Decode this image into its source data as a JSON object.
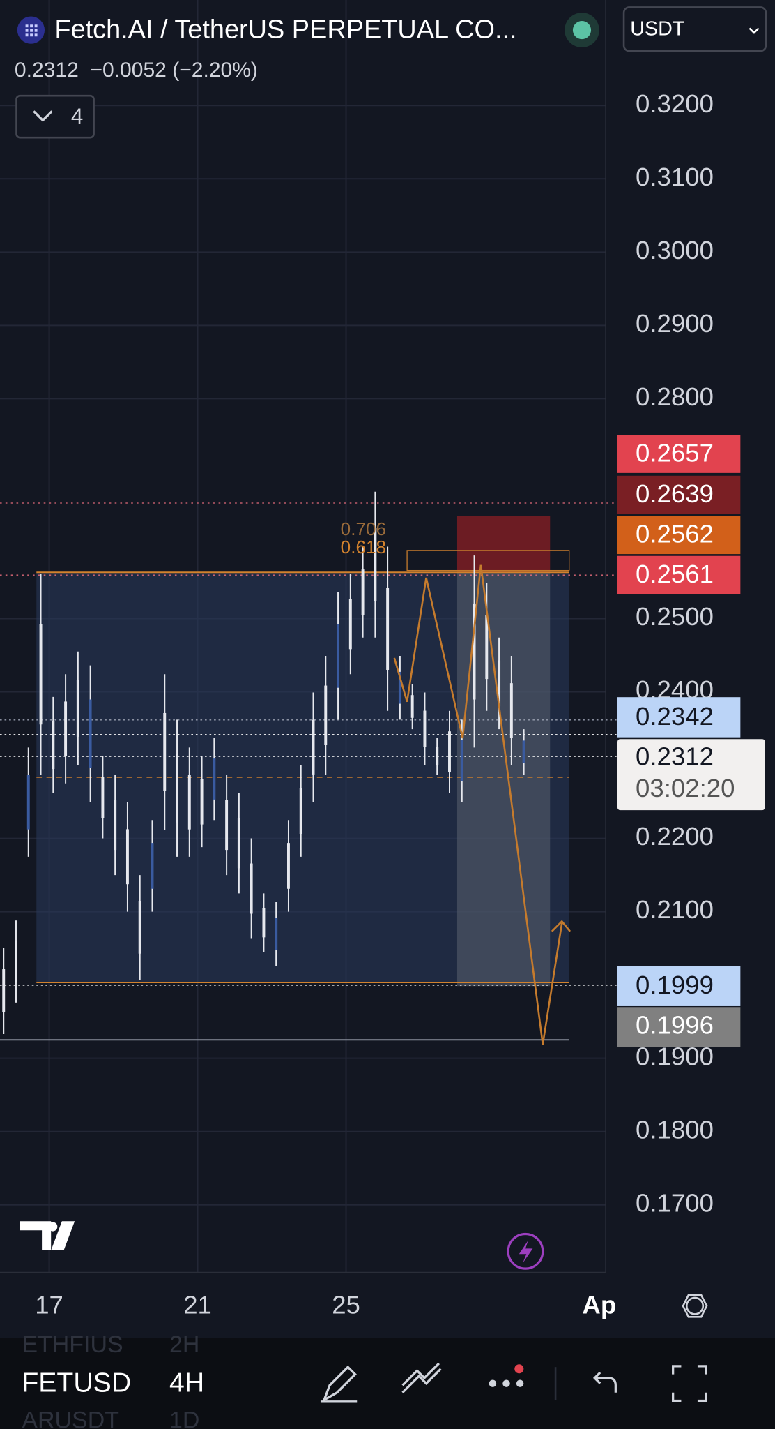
{
  "header": {
    "title": "Fetch.AI / TetherUS PERPETUAL CO...",
    "quote": "0.2312  −0.0052 (−2.20%)",
    "indicators": "4",
    "currency": "USDT"
  },
  "chart": {
    "type": "bar",
    "ylim": [
      0.1608,
      0.3344
    ],
    "yticks": [
      {
        "value": 0.32,
        "label": "0.3200"
      },
      {
        "value": 0.31,
        "label": "0.3100"
      },
      {
        "value": 0.3,
        "label": "0.3000"
      },
      {
        "value": 0.29,
        "label": "0.2900"
      },
      {
        "value": 0.28,
        "label": "0.2800"
      },
      {
        "value": 0.25,
        "label": "0.2500"
      },
      {
        "value": 0.24,
        "label": "0.2400"
      },
      {
        "value": 0.22,
        "label": "0.2200"
      },
      {
        "value": 0.21,
        "label": "0.2100"
      },
      {
        "value": 0.19,
        "label": "0.1900"
      },
      {
        "value": 0.18,
        "label": "0.1800"
      },
      {
        "value": 0.17,
        "label": "0.1700"
      }
    ],
    "xlabels": [
      "17",
      "21",
      "25",
      "Ap"
    ],
    "grid": true,
    "bars": [
      [
        0.2051,
        0.1933
      ],
      [
        0.2088,
        0.1976
      ],
      [
        0.2324,
        0.2175
      ],
      [
        0.2561,
        0.2287
      ],
      [
        0.2393,
        0.2262
      ],
      [
        0.2424,
        0.2275
      ],
      [
        0.2455,
        0.23
      ],
      [
        0.2436,
        0.225
      ],
      [
        0.2312,
        0.22
      ],
      [
        0.2287,
        0.215
      ],
      [
        0.225,
        0.21
      ],
      [
        0.215,
        0.2007
      ],
      [
        0.2225,
        0.21
      ],
      [
        0.2424,
        0.2212
      ],
      [
        0.2362,
        0.2175
      ],
      [
        0.2324,
        0.2175
      ],
      [
        0.2312,
        0.2188
      ],
      [
        0.2337,
        0.2225
      ],
      [
        0.2287,
        0.215
      ],
      [
        0.2262,
        0.2125
      ],
      [
        0.22,
        0.2063
      ],
      [
        0.2125,
        0.2045
      ],
      [
        0.2113,
        0.2026
      ],
      [
        0.2225,
        0.21
      ],
      [
        0.23,
        0.2175
      ],
      [
        0.2399,
        0.225
      ],
      [
        0.2449,
        0.2287
      ],
      [
        0.2536,
        0.2362
      ],
      [
        0.2561,
        0.2424
      ],
      [
        0.2598,
        0.2474
      ],
      [
        0.2673,
        0.2474
      ],
      [
        0.2598,
        0.2374
      ],
      [
        0.2449,
        0.2362
      ],
      [
        0.2411,
        0.2349
      ],
      [
        0.2399,
        0.23
      ],
      [
        0.2337,
        0.2287
      ],
      [
        0.2374,
        0.2262
      ],
      [
        0.2362,
        0.225
      ],
      [
        0.2586,
        0.2324
      ],
      [
        0.2548,
        0.2374
      ],
      [
        0.2474,
        0.2349
      ],
      [
        0.2449,
        0.23
      ],
      [
        0.2349,
        0.2287
      ]
    ],
    "fib_labels": [
      "0.706",
      "0.618"
    ],
    "price_badges": [
      0.2657,
      0.2639,
      0.2562,
      0.2561,
      0.2342,
      0.2312,
      0.1999,
      0.1996
    ],
    "countdown": "03:02:20"
  },
  "toolbar": {
    "symbols": [
      "ETHFIUS",
      "FETUSD",
      "ARUSDT"
    ],
    "intervals": [
      "2H",
      "4H",
      "1D"
    ]
  }
}
